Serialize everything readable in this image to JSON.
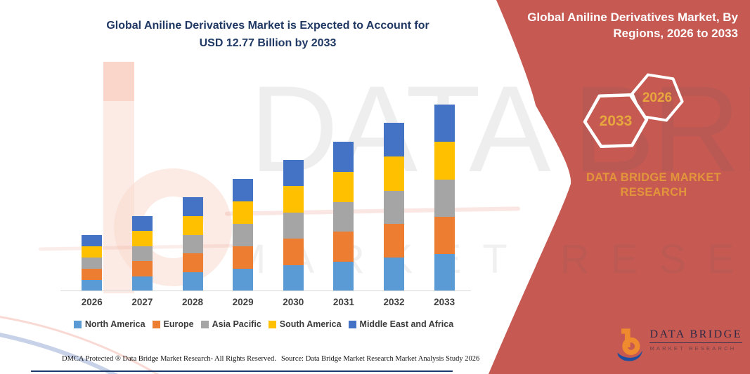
{
  "title": {
    "line1": "Global Aniline Derivatives Market is Expected to Account for",
    "line2": "USD 12.77 Billion by 2033",
    "color": "#1F3864"
  },
  "sidebar": {
    "bg_color": "#C65A52",
    "heading_line1": "Global Aniline Derivatives Market, By",
    "heading_line2": "Regions, 2026 to 2033",
    "hexagon_back_label": "2026",
    "hexagon_front_label": "2033",
    "hexagon_label_color": "#E7A63E",
    "caption_line1": "DATA BRIDGE MARKET",
    "caption_line2": "RESEARCH",
    "caption_color": "#E2953B",
    "logo": {
      "wordmark": "DATA BRIDGE",
      "subtext": "MARKET RESEARCH",
      "b_orange": "#F08A2E",
      "swoosh_blue": "#1F4E9E"
    }
  },
  "watermark": {
    "line1": "DATA BRIDGE",
    "line2": "MARKET RESEARCH"
  },
  "chart_data": {
    "type": "bar",
    "stacked": true,
    "unit": "USD Billion",
    "title": "Global Aniline Derivatives Market is Expected to Account for USD 12.77 Billion by 2033",
    "categories": [
      "2026",
      "2027",
      "2028",
      "2029",
      "2030",
      "2031",
      "2032",
      "2033"
    ],
    "series": [
      {
        "name": "North America",
        "color": "#5B9BD5",
        "values": [
          0.77,
          1.03,
          1.29,
          1.54,
          1.8,
          2.04,
          2.3,
          2.55
        ]
      },
      {
        "name": "Europe",
        "color": "#ED7D31",
        "values": [
          0.77,
          1.03,
          1.29,
          1.54,
          1.8,
          2.04,
          2.3,
          2.56
        ]
      },
      {
        "name": "Asia Pacific",
        "color": "#A5A5A5",
        "values": [
          0.77,
          1.03,
          1.29,
          1.53,
          1.8,
          2.04,
          2.3,
          2.55
        ]
      },
      {
        "name": "South America",
        "color": "#FFC000",
        "values": [
          0.78,
          1.03,
          1.29,
          1.54,
          1.8,
          2.05,
          2.31,
          2.56
        ]
      },
      {
        "name": "Middle East and Africa",
        "color": "#4472C4",
        "values": [
          0.77,
          1.04,
          1.3,
          1.54,
          1.81,
          2.05,
          2.31,
          2.55
        ]
      }
    ],
    "totals": [
      3.86,
      5.16,
      6.46,
      7.69,
      9.01,
      10.22,
      11.52,
      12.77
    ],
    "xlabel": "",
    "ylabel": "",
    "value_axis_visible": false,
    "grid": false,
    "legend_position": "bottom"
  },
  "footer": {
    "dmca": "DMCA Protected ® Data Bridge Market Research-  All Rights Reserved.",
    "source": "Source: Data Bridge Market Research  Market Analysis Study 2026"
  }
}
